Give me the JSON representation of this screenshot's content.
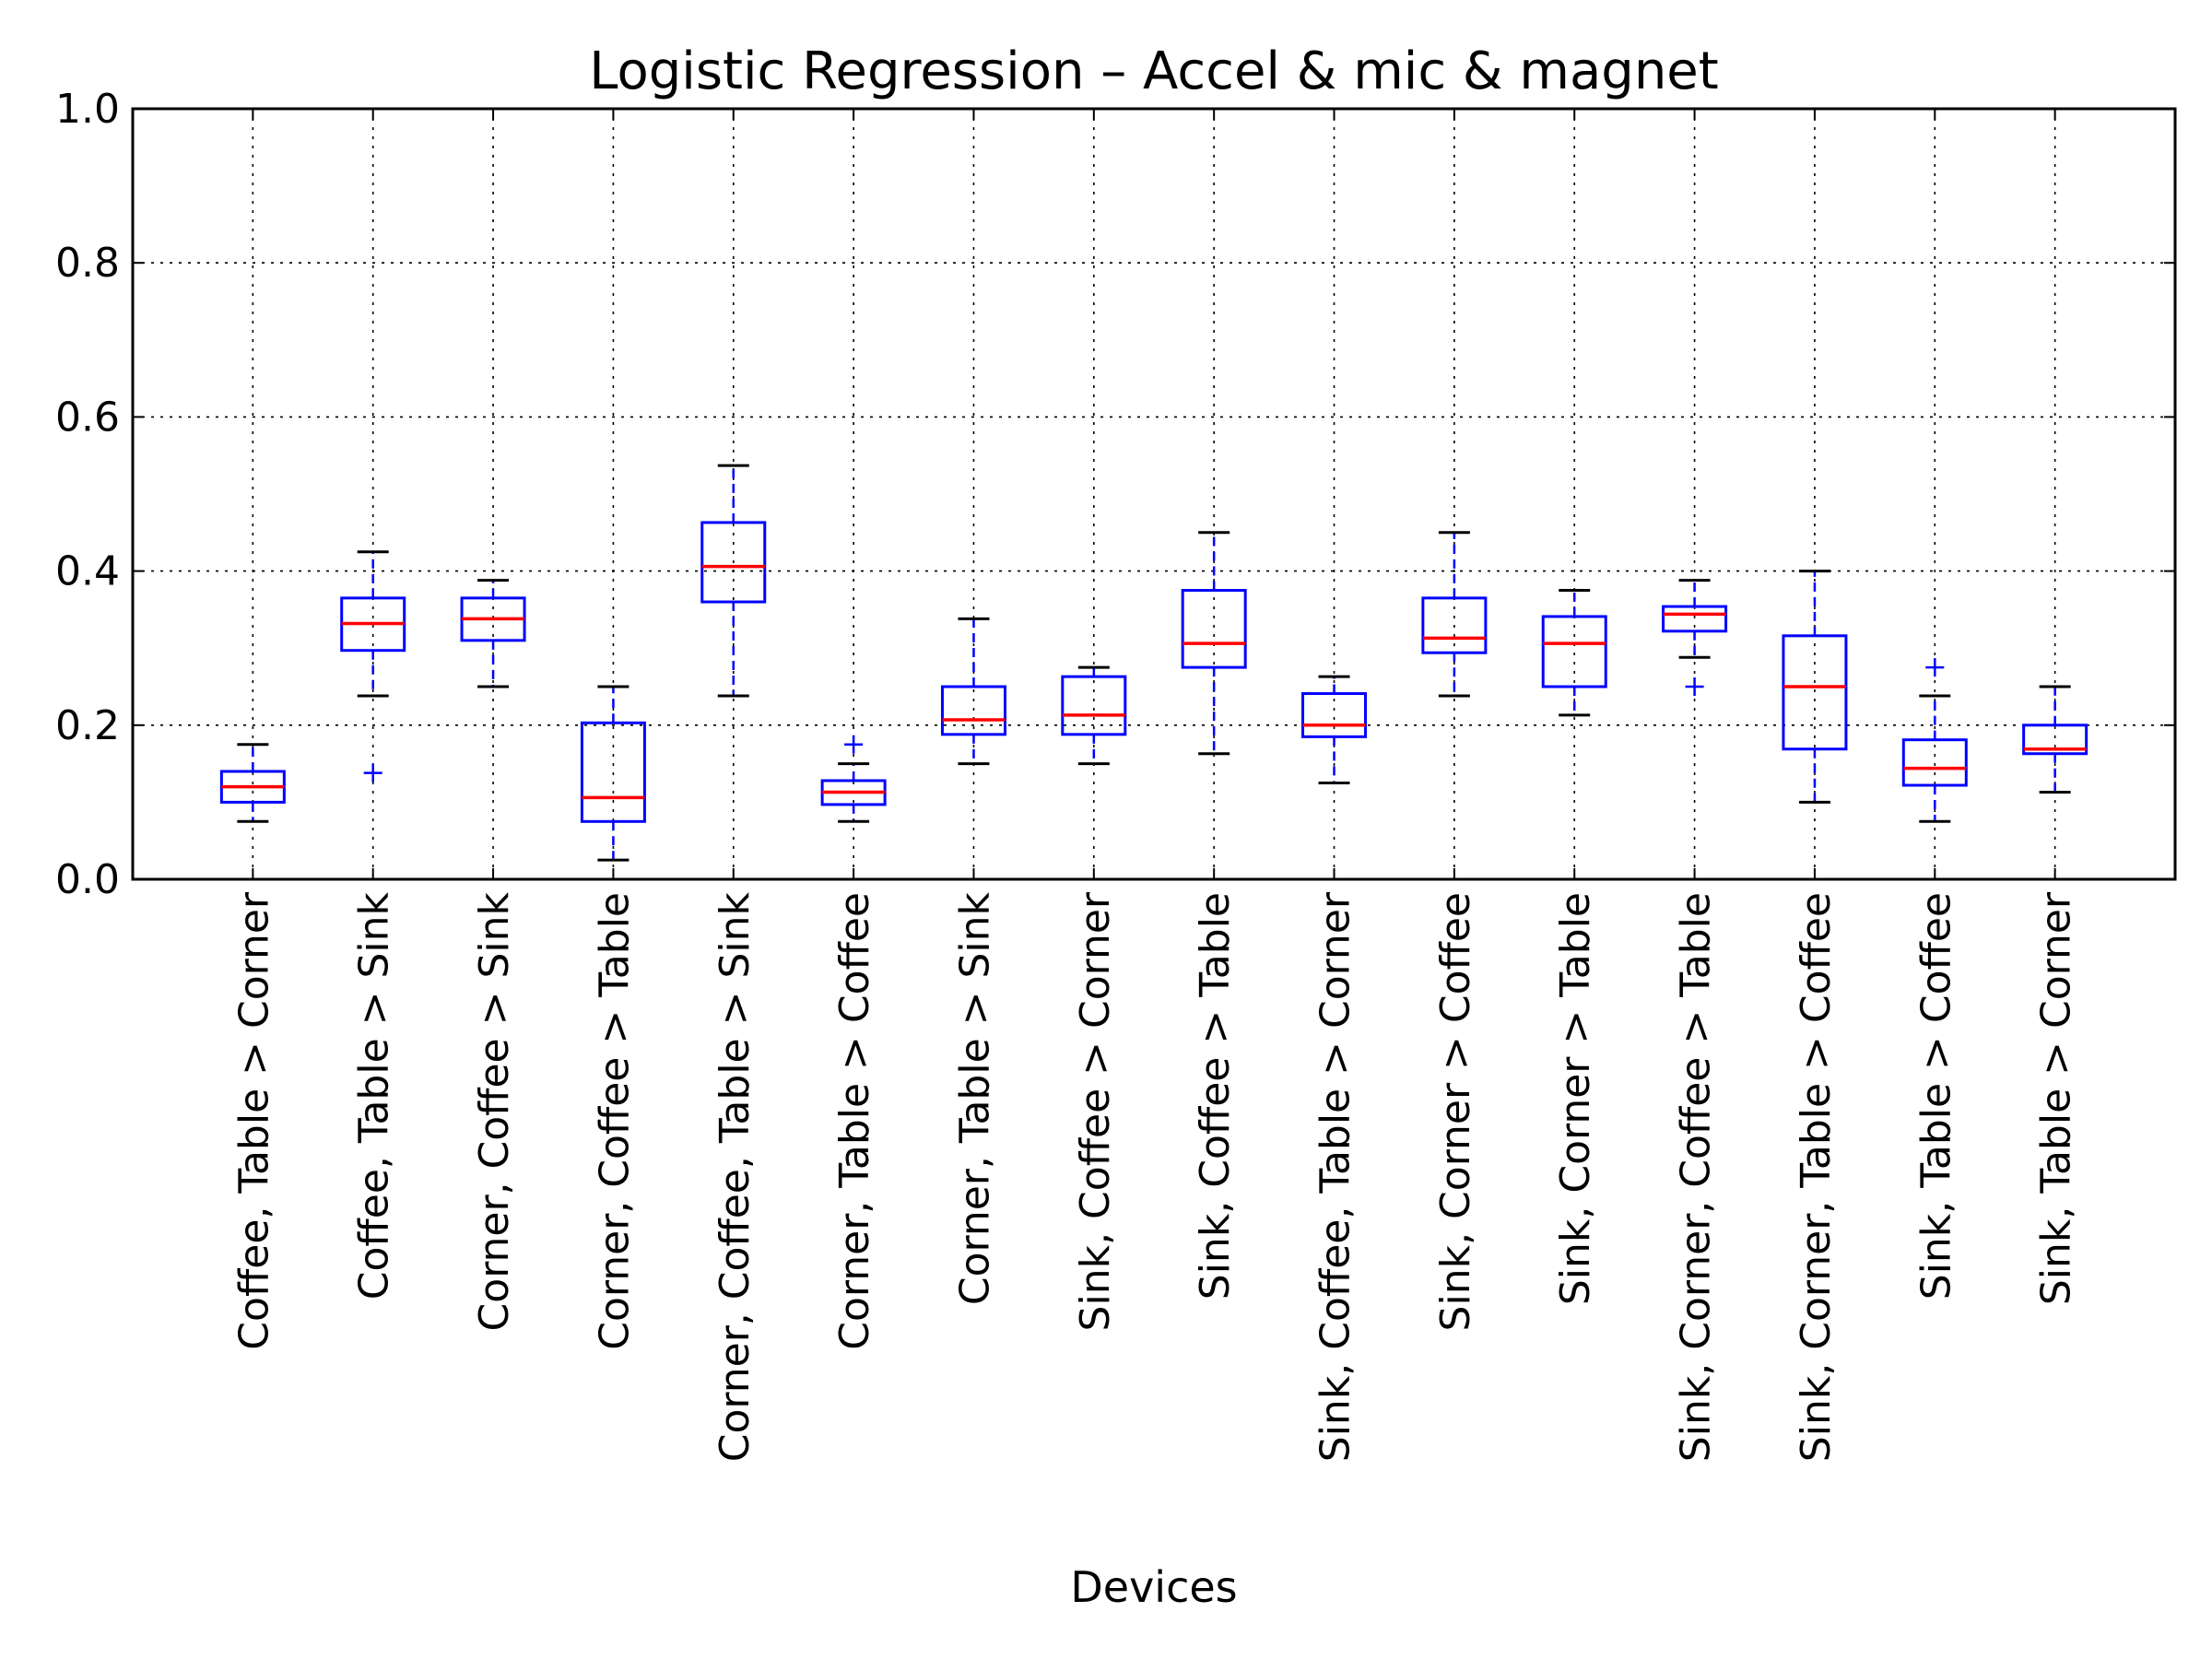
{
  "chart_data": {
    "type": "box",
    "title": "Logistic Regression – Accel & mic & magnet",
    "xlabel": "Devices",
    "ylabel": "",
    "ylim": [
      0.0,
      1.0
    ],
    "yticks": [
      "0.0",
      "0.2",
      "0.4",
      "0.6",
      "0.8",
      "1.0"
    ],
    "grid": true,
    "colors": {
      "box": "#0000ff",
      "median": "#ff0000",
      "whisker": "#0000ff",
      "cap": "#000000",
      "flier": "#0000ff"
    },
    "categories": [
      "Coffee, Table > Corner",
      "Coffee, Table > Sink",
      "Corner, Coffee > Sink",
      "Corner, Coffee > Table",
      "Corner, Coffee, Table > Sink",
      "Corner, Table > Coffee",
      "Corner, Table > Sink",
      "Sink, Coffee > Corner",
      "Sink, Coffee > Table",
      "Sink, Coffee, Table > Corner",
      "Sink, Corner > Coffee",
      "Sink, Corner > Table",
      "Sink, Corner, Coffee > Table",
      "Sink, Corner, Table > Coffee",
      "Sink, Table > Coffee",
      "Sink, Table > Corner"
    ],
    "boxes": [
      {
        "whislo": 0.075,
        "q1": 0.1,
        "median": 0.12,
        "q3": 0.14,
        "whishi": 0.175,
        "fliers": []
      },
      {
        "whislo": 0.238,
        "q1": 0.297,
        "median": 0.332,
        "q3": 0.365,
        "whishi": 0.425,
        "fliers": [
          0.138
        ]
      },
      {
        "whislo": 0.25,
        "q1": 0.31,
        "median": 0.338,
        "q3": 0.365,
        "whishi": 0.388,
        "fliers": []
      },
      {
        "whislo": 0.025,
        "q1": 0.075,
        "median": 0.106,
        "q3": 0.203,
        "whishi": 0.25,
        "fliers": []
      },
      {
        "whislo": 0.238,
        "q1": 0.36,
        "median": 0.406,
        "q3": 0.463,
        "whishi": 0.537,
        "fliers": []
      },
      {
        "whislo": 0.075,
        "q1": 0.097,
        "median": 0.113,
        "q3": 0.128,
        "whishi": 0.15,
        "fliers": [
          0.175
        ]
      },
      {
        "whislo": 0.15,
        "q1": 0.188,
        "median": 0.207,
        "q3": 0.25,
        "whishi": 0.338,
        "fliers": []
      },
      {
        "whislo": 0.15,
        "q1": 0.188,
        "median": 0.213,
        "q3": 0.263,
        "whishi": 0.275,
        "fliers": []
      },
      {
        "whislo": 0.163,
        "q1": 0.275,
        "median": 0.306,
        "q3": 0.375,
        "whishi": 0.45,
        "fliers": []
      },
      {
        "whislo": 0.125,
        "q1": 0.185,
        "median": 0.2,
        "q3": 0.241,
        "whishi": 0.263,
        "fliers": []
      },
      {
        "whislo": 0.238,
        "q1": 0.294,
        "median": 0.313,
        "q3": 0.365,
        "whishi": 0.45,
        "fliers": []
      },
      {
        "whislo": 0.213,
        "q1": 0.25,
        "median": 0.306,
        "q3": 0.341,
        "whishi": 0.375,
        "fliers": []
      },
      {
        "whislo": 0.288,
        "q1": 0.322,
        "median": 0.344,
        "q3": 0.354,
        "whishi": 0.388,
        "fliers": [
          0.25
        ]
      },
      {
        "whislo": 0.1,
        "q1": 0.169,
        "median": 0.25,
        "q3": 0.316,
        "whishi": 0.4,
        "fliers": []
      },
      {
        "whislo": 0.075,
        "q1": 0.122,
        "median": 0.144,
        "q3": 0.181,
        "whishi": 0.238,
        "fliers": [
          0.275
        ]
      },
      {
        "whislo": 0.113,
        "q1": 0.163,
        "median": 0.169,
        "q3": 0.2,
        "whishi": 0.25,
        "fliers": []
      }
    ]
  }
}
